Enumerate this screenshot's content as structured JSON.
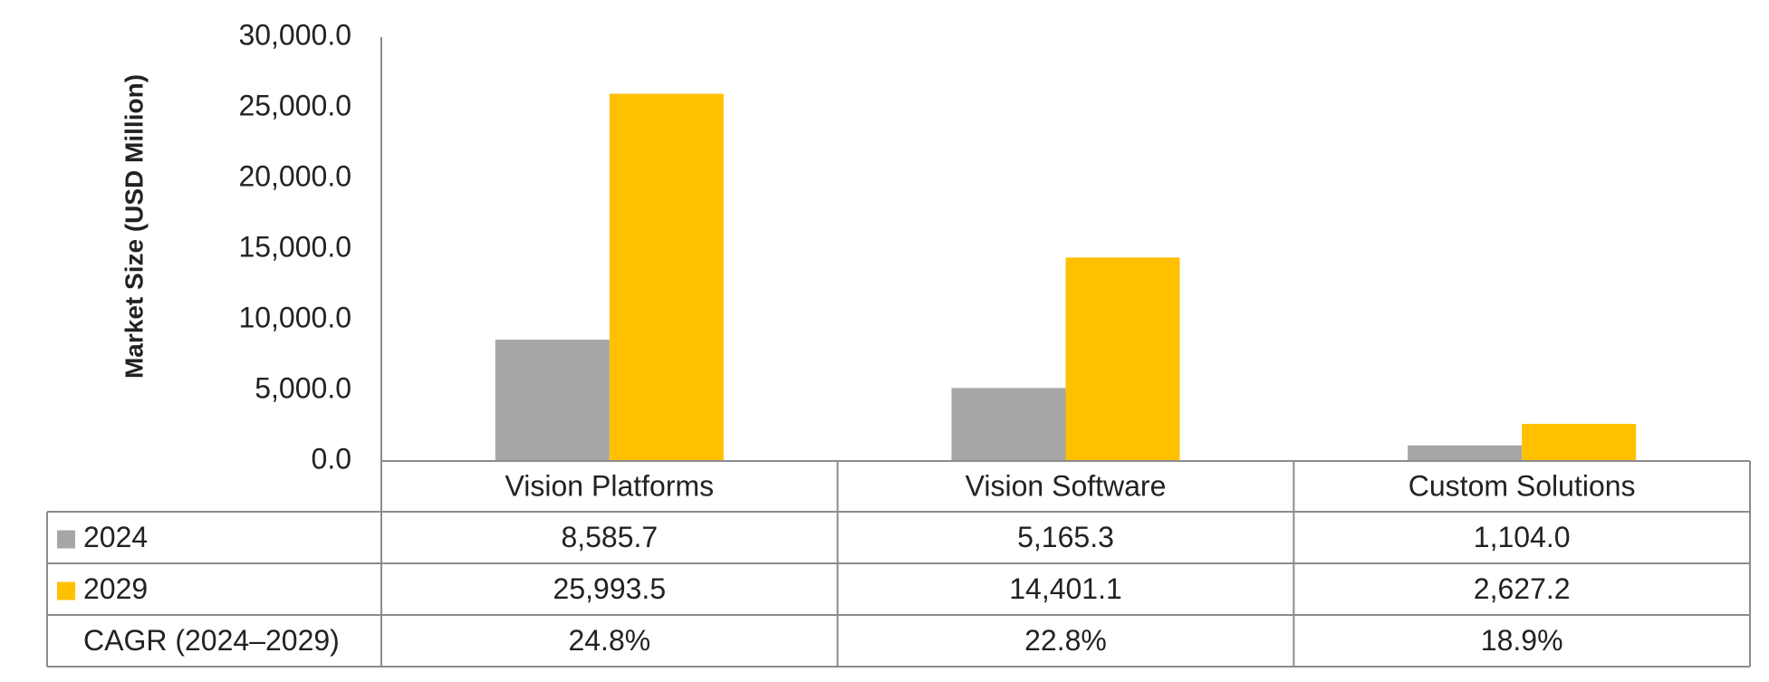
{
  "chart_data": {
    "type": "bar",
    "ylabel": "Market Size (USD Million)",
    "ylim": [
      0,
      30000
    ],
    "yticks": [
      "0.0",
      "5,000.0",
      "10,000.0",
      "15,000.0",
      "20,000.0",
      "25,000.0",
      "30,000.0"
    ],
    "categories": [
      "Vision Platforms",
      "Vision Software",
      "Custom Solutions"
    ],
    "series": [
      {
        "name": "2024",
        "color": "#a6a6a6",
        "values": [
          8585.7,
          5165.3,
          1104.0
        ],
        "labels": [
          "8,585.7",
          "5,165.3",
          "1,104.0"
        ]
      },
      {
        "name": "2029",
        "color": "#ffc000",
        "values": [
          25993.5,
          14401.1,
          2627.2
        ],
        "labels": [
          "25,993.5",
          "14,401.1",
          "2,627.2"
        ]
      }
    ],
    "table_rows": [
      {
        "label": "CAGR (2024–2029)",
        "values": [
          "24.8%",
          "22.8%",
          "18.9%"
        ]
      }
    ],
    "grid": false,
    "legend": "data table"
  }
}
